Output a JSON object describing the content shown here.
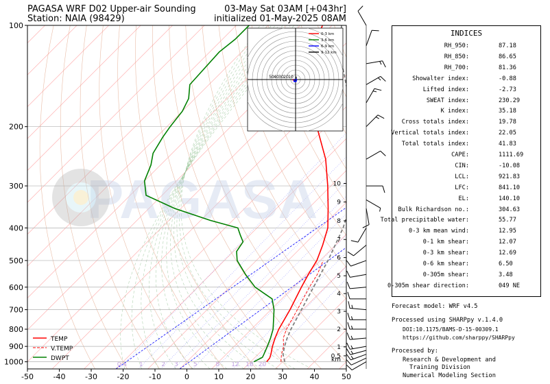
{
  "header": {
    "title_left_1": "PAGASA WRF D02 Upper-air Sounding",
    "title_left_2": "Station: NAIA (98429)",
    "title_right_1": "03-May Sat 03AM [+043hr]",
    "title_right_2": "initialized 01-May-2025 08AM"
  },
  "watermark": "PAGASA",
  "colors": {
    "temp": "#ff0000",
    "vtemp": "#ff0000",
    "dwpt": "#008000",
    "parcel": "#808080",
    "mixing_ratio": "#0000ff",
    "isotherm": "#ffb0b0",
    "dry_adiabat": "#e0a080",
    "moist_adiabat": "#90c090"
  },
  "chart_data": {
    "type": "line",
    "title": "",
    "x_axis": {
      "range": [
        -50,
        50
      ],
      "ticks": [
        -50,
        -40,
        -30,
        -20,
        -10,
        0,
        10,
        20,
        30,
        40,
        50
      ]
    },
    "y_axis": {
      "scale": "log",
      "range": [
        1050,
        100
      ],
      "ticks": [
        1000,
        900,
        800,
        700,
        600,
        500,
        400,
        300,
        200,
        100
      ]
    },
    "height_axis": {
      "labels": [
        "km",
        "0.5",
        "1",
        "2",
        "3",
        "4",
        "5",
        "6",
        "7",
        "8",
        "9",
        "10"
      ],
      "pressure": [
        983,
        960,
        903,
        800,
        708,
        627,
        555,
        490,
        433,
        381,
        335,
        295
      ]
    },
    "legend": {
      "position": "bottom-left",
      "entries": [
        "TEMP",
        "V.TEMP",
        "DWPT"
      ]
    },
    "series": [
      {
        "name": "TEMP",
        "style": "solid",
        "points": [
          [
            1000,
            25
          ],
          [
            975,
            24.8
          ],
          [
            950,
            24
          ],
          [
            925,
            23
          ],
          [
            900,
            22
          ],
          [
            850,
            20.2
          ],
          [
            800,
            18.6
          ],
          [
            700,
            16
          ],
          [
            600,
            12.5
          ],
          [
            550,
            10.7
          ],
          [
            500,
            9
          ],
          [
            450,
            6
          ],
          [
            400,
            2.2
          ],
          [
            350,
            -3.8
          ],
          [
            300,
            -11
          ],
          [
            250,
            -20
          ],
          [
            200,
            -33
          ],
          [
            175,
            -40
          ],
          [
            150,
            -49
          ],
          [
            125,
            -56
          ],
          [
            115,
            -59
          ],
          [
            100,
            -63
          ]
        ]
      },
      {
        "name": "V.TEMP",
        "style": "dashed",
        "points": [
          [
            1000,
            29.5
          ],
          [
            950,
            27.3
          ],
          [
            900,
            25.5
          ],
          [
            850,
            22.8
          ],
          [
            800,
            21
          ],
          [
            700,
            18.3
          ],
          [
            600,
            15
          ],
          [
            550,
            13.5
          ],
          [
            500,
            11
          ]
        ]
      },
      {
        "name": "DWPT",
        "style": "solid",
        "points": [
          [
            1000,
            21
          ],
          [
            970,
            22.3
          ],
          [
            950,
            21.8
          ],
          [
            900,
            20.4
          ],
          [
            850,
            18.8
          ],
          [
            800,
            16.8
          ],
          [
            750,
            14
          ],
          [
            700,
            11
          ],
          [
            650,
            7
          ],
          [
            600,
            -2
          ],
          [
            550,
            -9
          ],
          [
            500,
            -16
          ],
          [
            470,
            -19
          ],
          [
            440,
            -20
          ],
          [
            420,
            -23
          ],
          [
            400,
            -26
          ],
          [
            380,
            -37
          ],
          [
            350,
            -52
          ],
          [
            320,
            -65
          ],
          [
            290,
            -70
          ],
          [
            260,
            -73
          ],
          [
            240,
            -76
          ],
          [
            215,
            -78
          ],
          [
            200,
            -79
          ],
          [
            180,
            -80
          ],
          [
            165,
            -82
          ],
          [
            150,
            -86
          ],
          [
            120,
            -87
          ],
          [
            110,
            -86
          ],
          [
            100,
            -86
          ]
        ]
      },
      {
        "name": "",
        "style": "dashed",
        "points": [
          [
            1000,
            30.7
          ],
          [
            950,
            27.8
          ],
          [
            900,
            25.8
          ],
          [
            850,
            24
          ],
          [
            800,
            22.4
          ],
          [
            700,
            19.6
          ],
          [
            600,
            16.3
          ],
          [
            500,
            12.5
          ],
          [
            400,
            7
          ],
          [
            350,
            2.8
          ],
          [
            300,
            -2
          ],
          [
            250,
            -10
          ],
          [
            200,
            -21
          ],
          [
            150,
            -37
          ],
          [
            125,
            -47
          ],
          [
            110,
            -53
          ],
          [
            100,
            -57
          ]
        ]
      }
    ],
    "mixing_ratio_lines": [
      {
        "label": "0.4",
        "t_at_1000": -19,
        "t_at_600": -23
      },
      {
        "label": "1",
        "t_at_1000": -13,
        "t_at_600": -15
      },
      {
        "label": "2",
        "t_at_1000": -6,
        "t_at_600": -7
      },
      {
        "label": "3",
        "t_at_1000": -2,
        "t_at_600": -2
      },
      {
        "label": "5",
        "t_at_1000": 4,
        "t_at_600": 3
      },
      {
        "label": "8",
        "t_at_1000": 11,
        "t_at_600": 9
      },
      {
        "label": "12",
        "t_at_1000": 16.5,
        "t_at_600": 14
      },
      {
        "label": "16",
        "t_at_1000": 21,
        "t_at_600": 18
      },
      {
        "label": "20",
        "t_at_1000": 25,
        "t_at_600": 21
      }
    ],
    "wind_barbs": [
      {
        "p": 1000,
        "dir": 240,
        "spd": 10
      },
      {
        "p": 975,
        "dir": 245,
        "spd": 12
      },
      {
        "p": 950,
        "dir": 250,
        "spd": 15
      },
      {
        "p": 925,
        "dir": 255,
        "spd": 15
      },
      {
        "p": 900,
        "dir": 260,
        "spd": 15
      },
      {
        "p": 850,
        "dir": 265,
        "spd": 15
      },
      {
        "p": 800,
        "dir": 270,
        "spd": 15
      },
      {
        "p": 750,
        "dir": 270,
        "spd": 15
      },
      {
        "p": 700,
        "dir": 275,
        "spd": 15
      },
      {
        "p": 650,
        "dir": 270,
        "spd": 10
      },
      {
        "p": 600,
        "dir": 265,
        "spd": 10
      },
      {
        "p": 550,
        "dir": 260,
        "spd": 10
      },
      {
        "p": 500,
        "dir": 250,
        "spd": 10
      },
      {
        "p": 450,
        "dir": 230,
        "spd": 10
      },
      {
        "p": 400,
        "dir": 210,
        "spd": 10
      },
      {
        "p": 350,
        "dir": 170,
        "spd": 10
      },
      {
        "p": 330,
        "dir": 120,
        "spd": 5
      },
      {
        "p": 300,
        "dir": 90,
        "spd": 10
      },
      {
        "p": 250,
        "dir": 60,
        "spd": 10
      },
      {
        "p": 200,
        "dir": 45,
        "spd": 15
      },
      {
        "p": 170,
        "dir": 30,
        "spd": 15
      },
      {
        "p": 150,
        "dir": 60,
        "spd": 15
      },
      {
        "p": 130,
        "dir": 80,
        "spd": 15
      },
      {
        "p": 115,
        "dir": 20,
        "spd": 10
      },
      {
        "p": 100,
        "dir": 330,
        "spd": 10
      }
    ],
    "hodograph": {
      "rings": [
        10,
        20,
        30,
        40,
        50
      ],
      "ring_labels": [
        "10",
        "20",
        "30",
        "40",
        "50"
      ],
      "legend": [
        "0-3 km",
        "3-6 km",
        "6-9 km",
        "9-12 km"
      ],
      "segments": [
        {
          "name": "0-3 km",
          "color": "#ff0000",
          "points": [
            [
              -4,
              1
            ],
            [
              -5,
              -1
            ],
            [
              -3,
              -2
            ],
            [
              -1,
              -1
            ]
          ]
        },
        {
          "name": "3-6 km",
          "color": "#008000",
          "points": [
            [
              -1,
              -1
            ],
            [
              -2,
              -2
            ],
            [
              -3,
              1
            ]
          ]
        },
        {
          "name": "6-9 km",
          "color": "#0000ff",
          "points": [
            [
              -3,
              1
            ],
            [
              -3,
              -4
            ],
            [
              1,
              -4
            ],
            [
              2,
              -1
            ],
            [
              1,
              2
            ]
          ]
        },
        {
          "name": "9-12 km",
          "color": "#000000",
          "points": [
            [
              1,
              2
            ],
            [
              1,
              6
            ]
          ]
        }
      ]
    }
  },
  "indices": {
    "title": "INDICES",
    "rows": [
      {
        "label": "RH_950:",
        "value": "87.18"
      },
      {
        "label": "RH_850:",
        "value": "86.65"
      },
      {
        "label": "RH_700:",
        "value": "81.36"
      },
      {
        "label": "Showalter index:",
        "value": "-0.88"
      },
      {
        "label": "Lifted index:",
        "value": "-2.73"
      },
      {
        "label": "SWEAT index:",
        "value": "230.29"
      },
      {
        "label": "K index:",
        "value": "35.18"
      },
      {
        "label": "Cross totals index:",
        "value": "19.78"
      },
      {
        "label": "Vertical totals index:",
        "value": "22.05"
      },
      {
        "label": "Total totals index:",
        "value": "41.83"
      },
      {
        "label": "CAPE:",
        "value": "1111.69"
      },
      {
        "label": "CIN:",
        "value": "-10.08"
      },
      {
        "label": "LCL:",
        "value": "921.83"
      },
      {
        "label": "LFC:",
        "value": "841.10"
      },
      {
        "label": "EL:",
        "value": "140.10"
      },
      {
        "label": "Bulk Richardson no.:",
        "value": "304.63"
      },
      {
        "label": "Total precipitable water:",
        "value": "55.77"
      },
      {
        "label": "0-3 km mean wind:",
        "value": "12.95"
      },
      {
        "label": "0-1 km shear:",
        "value": "12.07"
      },
      {
        "label": "0-3 km shear:",
        "value": "12.69"
      },
      {
        "label": "0-6 km shear:",
        "value": "6.50"
      },
      {
        "label": "0-305m shear:",
        "value": "3.48"
      },
      {
        "label": "0-305m shear direction:",
        "value": "049 NE"
      }
    ]
  },
  "footer": {
    "forecast_model": "Forecast model: WRF v4.5",
    "processed_using": "Processed using SHARPpy v.1.4.0",
    "doi": "DOI:10.1175/BAMS-D-15-00309.1",
    "url": "https://github.com/sharppy/SHARPpy",
    "processed_by": "Processed by:",
    "org_line1": "Research & Development and",
    "org_line2": "Training Division",
    "org_line3": "Numerical Modeling Section"
  }
}
